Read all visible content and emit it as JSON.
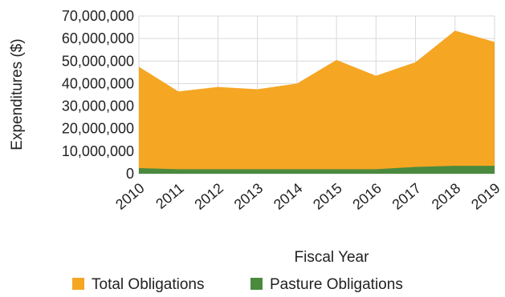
{
  "chart_data": {
    "type": "area",
    "x": [
      "2010",
      "2011",
      "2012",
      "2013",
      "2014",
      "2015",
      "2016",
      "2017",
      "2018",
      "2019"
    ],
    "xlabel": "Fiscal Year",
    "ylabel": "Expenditures ($)",
    "ylim": [
      0,
      70000000
    ],
    "y_ticks": [
      "0",
      "10,000,000",
      "20,000,000",
      "30,000,000",
      "40,000,000",
      "50,000,000",
      "60,000,000",
      "70,000,000"
    ],
    "grid": true,
    "stacked": false,
    "legend_position": "bottom",
    "series": [
      {
        "name": "Total Obligations",
        "color": "#f5a623",
        "values": [
          47500000,
          36500000,
          38500000,
          37500000,
          40000000,
          50500000,
          43500000,
          49500000,
          63500000,
          58500000
        ]
      },
      {
        "name": "Pasture Obligations",
        "color": "#4a8a3f",
        "values": [
          2500000,
          2000000,
          2000000,
          2000000,
          2000000,
          2000000,
          2000000,
          3000000,
          3500000,
          3500000
        ]
      }
    ]
  }
}
